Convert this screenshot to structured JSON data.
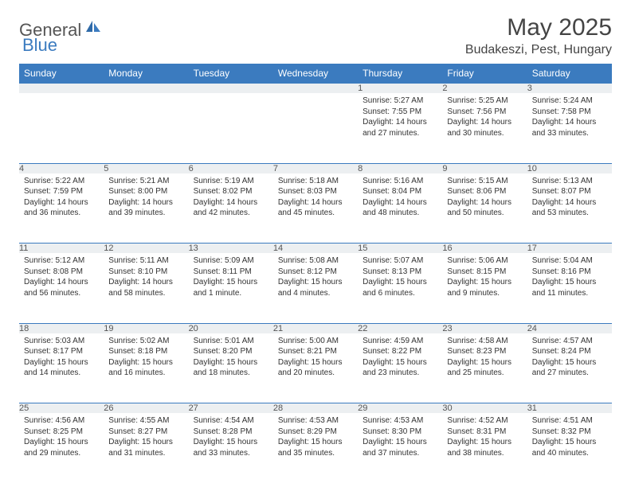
{
  "brand": {
    "general": "General",
    "blue": "Blue"
  },
  "title": "May 2025",
  "location": "Budakeszi, Pest, Hungary",
  "colors": {
    "header_bg": "#3b7bbf",
    "header_text": "#ffffff",
    "daynum_bg": "#eceff1",
    "border": "#3b7bbf",
    "text": "#333333",
    "brand_gray": "#555555",
    "brand_blue": "#3b7bbf",
    "background": "#ffffff"
  },
  "weekdays": [
    "Sunday",
    "Monday",
    "Tuesday",
    "Wednesday",
    "Thursday",
    "Friday",
    "Saturday"
  ],
  "weeks": [
    [
      {
        "n": "",
        "sr": "",
        "ss": "",
        "dl": ""
      },
      {
        "n": "",
        "sr": "",
        "ss": "",
        "dl": ""
      },
      {
        "n": "",
        "sr": "",
        "ss": "",
        "dl": ""
      },
      {
        "n": "",
        "sr": "",
        "ss": "",
        "dl": ""
      },
      {
        "n": "1",
        "sr": "Sunrise: 5:27 AM",
        "ss": "Sunset: 7:55 PM",
        "dl": "Daylight: 14 hours and 27 minutes."
      },
      {
        "n": "2",
        "sr": "Sunrise: 5:25 AM",
        "ss": "Sunset: 7:56 PM",
        "dl": "Daylight: 14 hours and 30 minutes."
      },
      {
        "n": "3",
        "sr": "Sunrise: 5:24 AM",
        "ss": "Sunset: 7:58 PM",
        "dl": "Daylight: 14 hours and 33 minutes."
      }
    ],
    [
      {
        "n": "4",
        "sr": "Sunrise: 5:22 AM",
        "ss": "Sunset: 7:59 PM",
        "dl": "Daylight: 14 hours and 36 minutes."
      },
      {
        "n": "5",
        "sr": "Sunrise: 5:21 AM",
        "ss": "Sunset: 8:00 PM",
        "dl": "Daylight: 14 hours and 39 minutes."
      },
      {
        "n": "6",
        "sr": "Sunrise: 5:19 AM",
        "ss": "Sunset: 8:02 PM",
        "dl": "Daylight: 14 hours and 42 minutes."
      },
      {
        "n": "7",
        "sr": "Sunrise: 5:18 AM",
        "ss": "Sunset: 8:03 PM",
        "dl": "Daylight: 14 hours and 45 minutes."
      },
      {
        "n": "8",
        "sr": "Sunrise: 5:16 AM",
        "ss": "Sunset: 8:04 PM",
        "dl": "Daylight: 14 hours and 48 minutes."
      },
      {
        "n": "9",
        "sr": "Sunrise: 5:15 AM",
        "ss": "Sunset: 8:06 PM",
        "dl": "Daylight: 14 hours and 50 minutes."
      },
      {
        "n": "10",
        "sr": "Sunrise: 5:13 AM",
        "ss": "Sunset: 8:07 PM",
        "dl": "Daylight: 14 hours and 53 minutes."
      }
    ],
    [
      {
        "n": "11",
        "sr": "Sunrise: 5:12 AM",
        "ss": "Sunset: 8:08 PM",
        "dl": "Daylight: 14 hours and 56 minutes."
      },
      {
        "n": "12",
        "sr": "Sunrise: 5:11 AM",
        "ss": "Sunset: 8:10 PM",
        "dl": "Daylight: 14 hours and 58 minutes."
      },
      {
        "n": "13",
        "sr": "Sunrise: 5:09 AM",
        "ss": "Sunset: 8:11 PM",
        "dl": "Daylight: 15 hours and 1 minute."
      },
      {
        "n": "14",
        "sr": "Sunrise: 5:08 AM",
        "ss": "Sunset: 8:12 PM",
        "dl": "Daylight: 15 hours and 4 minutes."
      },
      {
        "n": "15",
        "sr": "Sunrise: 5:07 AM",
        "ss": "Sunset: 8:13 PM",
        "dl": "Daylight: 15 hours and 6 minutes."
      },
      {
        "n": "16",
        "sr": "Sunrise: 5:06 AM",
        "ss": "Sunset: 8:15 PM",
        "dl": "Daylight: 15 hours and 9 minutes."
      },
      {
        "n": "17",
        "sr": "Sunrise: 5:04 AM",
        "ss": "Sunset: 8:16 PM",
        "dl": "Daylight: 15 hours and 11 minutes."
      }
    ],
    [
      {
        "n": "18",
        "sr": "Sunrise: 5:03 AM",
        "ss": "Sunset: 8:17 PM",
        "dl": "Daylight: 15 hours and 14 minutes."
      },
      {
        "n": "19",
        "sr": "Sunrise: 5:02 AM",
        "ss": "Sunset: 8:18 PM",
        "dl": "Daylight: 15 hours and 16 minutes."
      },
      {
        "n": "20",
        "sr": "Sunrise: 5:01 AM",
        "ss": "Sunset: 8:20 PM",
        "dl": "Daylight: 15 hours and 18 minutes."
      },
      {
        "n": "21",
        "sr": "Sunrise: 5:00 AM",
        "ss": "Sunset: 8:21 PM",
        "dl": "Daylight: 15 hours and 20 minutes."
      },
      {
        "n": "22",
        "sr": "Sunrise: 4:59 AM",
        "ss": "Sunset: 8:22 PM",
        "dl": "Daylight: 15 hours and 23 minutes."
      },
      {
        "n": "23",
        "sr": "Sunrise: 4:58 AM",
        "ss": "Sunset: 8:23 PM",
        "dl": "Daylight: 15 hours and 25 minutes."
      },
      {
        "n": "24",
        "sr": "Sunrise: 4:57 AM",
        "ss": "Sunset: 8:24 PM",
        "dl": "Daylight: 15 hours and 27 minutes."
      }
    ],
    [
      {
        "n": "25",
        "sr": "Sunrise: 4:56 AM",
        "ss": "Sunset: 8:25 PM",
        "dl": "Daylight: 15 hours and 29 minutes."
      },
      {
        "n": "26",
        "sr": "Sunrise: 4:55 AM",
        "ss": "Sunset: 8:27 PM",
        "dl": "Daylight: 15 hours and 31 minutes."
      },
      {
        "n": "27",
        "sr": "Sunrise: 4:54 AM",
        "ss": "Sunset: 8:28 PM",
        "dl": "Daylight: 15 hours and 33 minutes."
      },
      {
        "n": "28",
        "sr": "Sunrise: 4:53 AM",
        "ss": "Sunset: 8:29 PM",
        "dl": "Daylight: 15 hours and 35 minutes."
      },
      {
        "n": "29",
        "sr": "Sunrise: 4:53 AM",
        "ss": "Sunset: 8:30 PM",
        "dl": "Daylight: 15 hours and 37 minutes."
      },
      {
        "n": "30",
        "sr": "Sunrise: 4:52 AM",
        "ss": "Sunset: 8:31 PM",
        "dl": "Daylight: 15 hours and 38 minutes."
      },
      {
        "n": "31",
        "sr": "Sunrise: 4:51 AM",
        "ss": "Sunset: 8:32 PM",
        "dl": "Daylight: 15 hours and 40 minutes."
      }
    ]
  ]
}
